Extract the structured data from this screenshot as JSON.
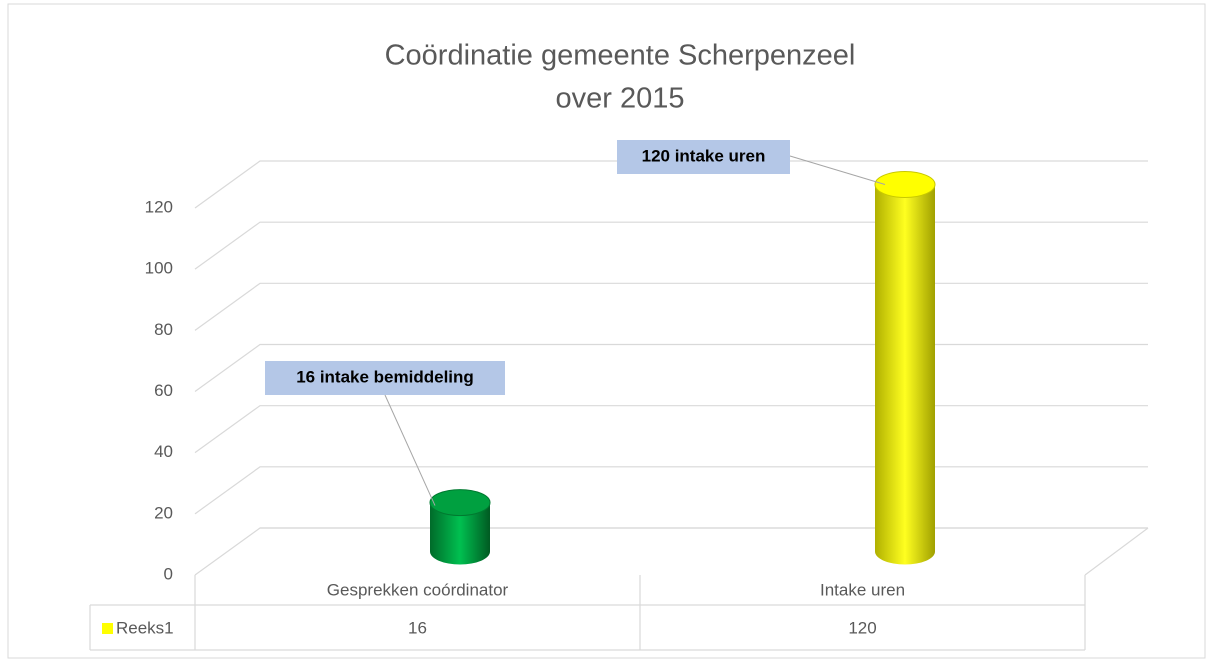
{
  "chart_data": {
    "type": "bar3d",
    "title": [
      "Coördinatie gemeente Scherpenzeel",
      "over 2015"
    ],
    "categories": [
      "Gesprekken coórdinator",
      "Intake uren"
    ],
    "series": [
      {
        "name": "Reeks1",
        "color": "#ffff00",
        "values": [
          16,
          120
        ],
        "value_labels": [
          "16 intake bemiddeling",
          "120 intake uren"
        ],
        "point_colors": [
          "#00a040",
          "#ffff00"
        ]
      }
    ],
    "ylim": [
      0,
      120
    ],
    "yticks": [
      0,
      20,
      40,
      60,
      80,
      100,
      120
    ],
    "grid": true,
    "data_table": true
  }
}
